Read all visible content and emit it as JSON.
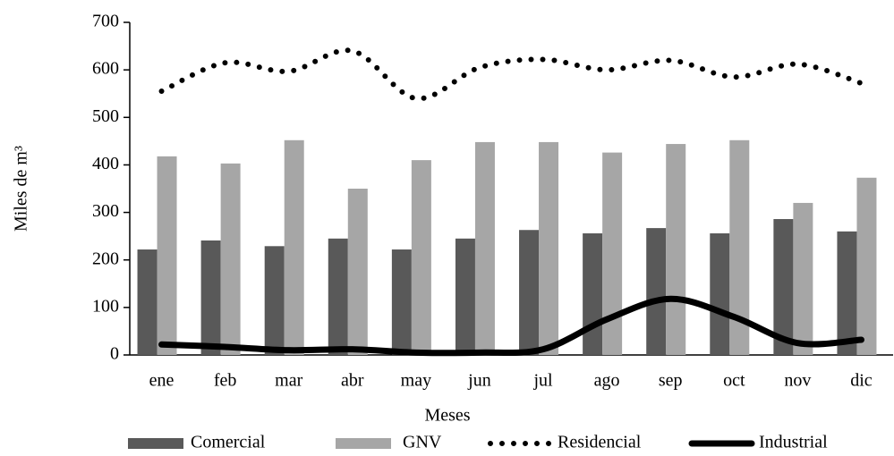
{
  "chart_data": {
    "type": "bar_line",
    "x_label": "Meses",
    "y_label": "Miles de m³",
    "categories": [
      "ene",
      "feb",
      "mar",
      "abr",
      "may",
      "jun",
      "jul",
      "ago",
      "sep",
      "oct",
      "nov",
      "dic"
    ],
    "ylim": [
      0,
      700
    ],
    "yticks": [
      0,
      100,
      200,
      300,
      400,
      500,
      600,
      700
    ],
    "series": [
      {
        "name": "Comercial",
        "type": "bar",
        "color": "#595959",
        "values": [
          222,
          241,
          229,
          245,
          222,
          245,
          263,
          256,
          267,
          256,
          286,
          260
        ]
      },
      {
        "name": "GNV",
        "type": "bar",
        "color": "#a6a6a6",
        "values": [
          418,
          403,
          452,
          350,
          410,
          448,
          448,
          426,
          444,
          452,
          320,
          373
        ]
      },
      {
        "name": "Residencial",
        "type": "line",
        "style": "dotted",
        "color": "#000000",
        "values": [
          555,
          615,
          597,
          640,
          540,
          605,
          622,
          600,
          620,
          585,
          612,
          572
        ]
      },
      {
        "name": "Industrial",
        "type": "line",
        "style": "solid",
        "color": "#000000",
        "values": [
          22,
          17,
          10,
          12,
          5,
          5,
          12,
          75,
          118,
          80,
          25,
          32
        ]
      }
    ]
  }
}
